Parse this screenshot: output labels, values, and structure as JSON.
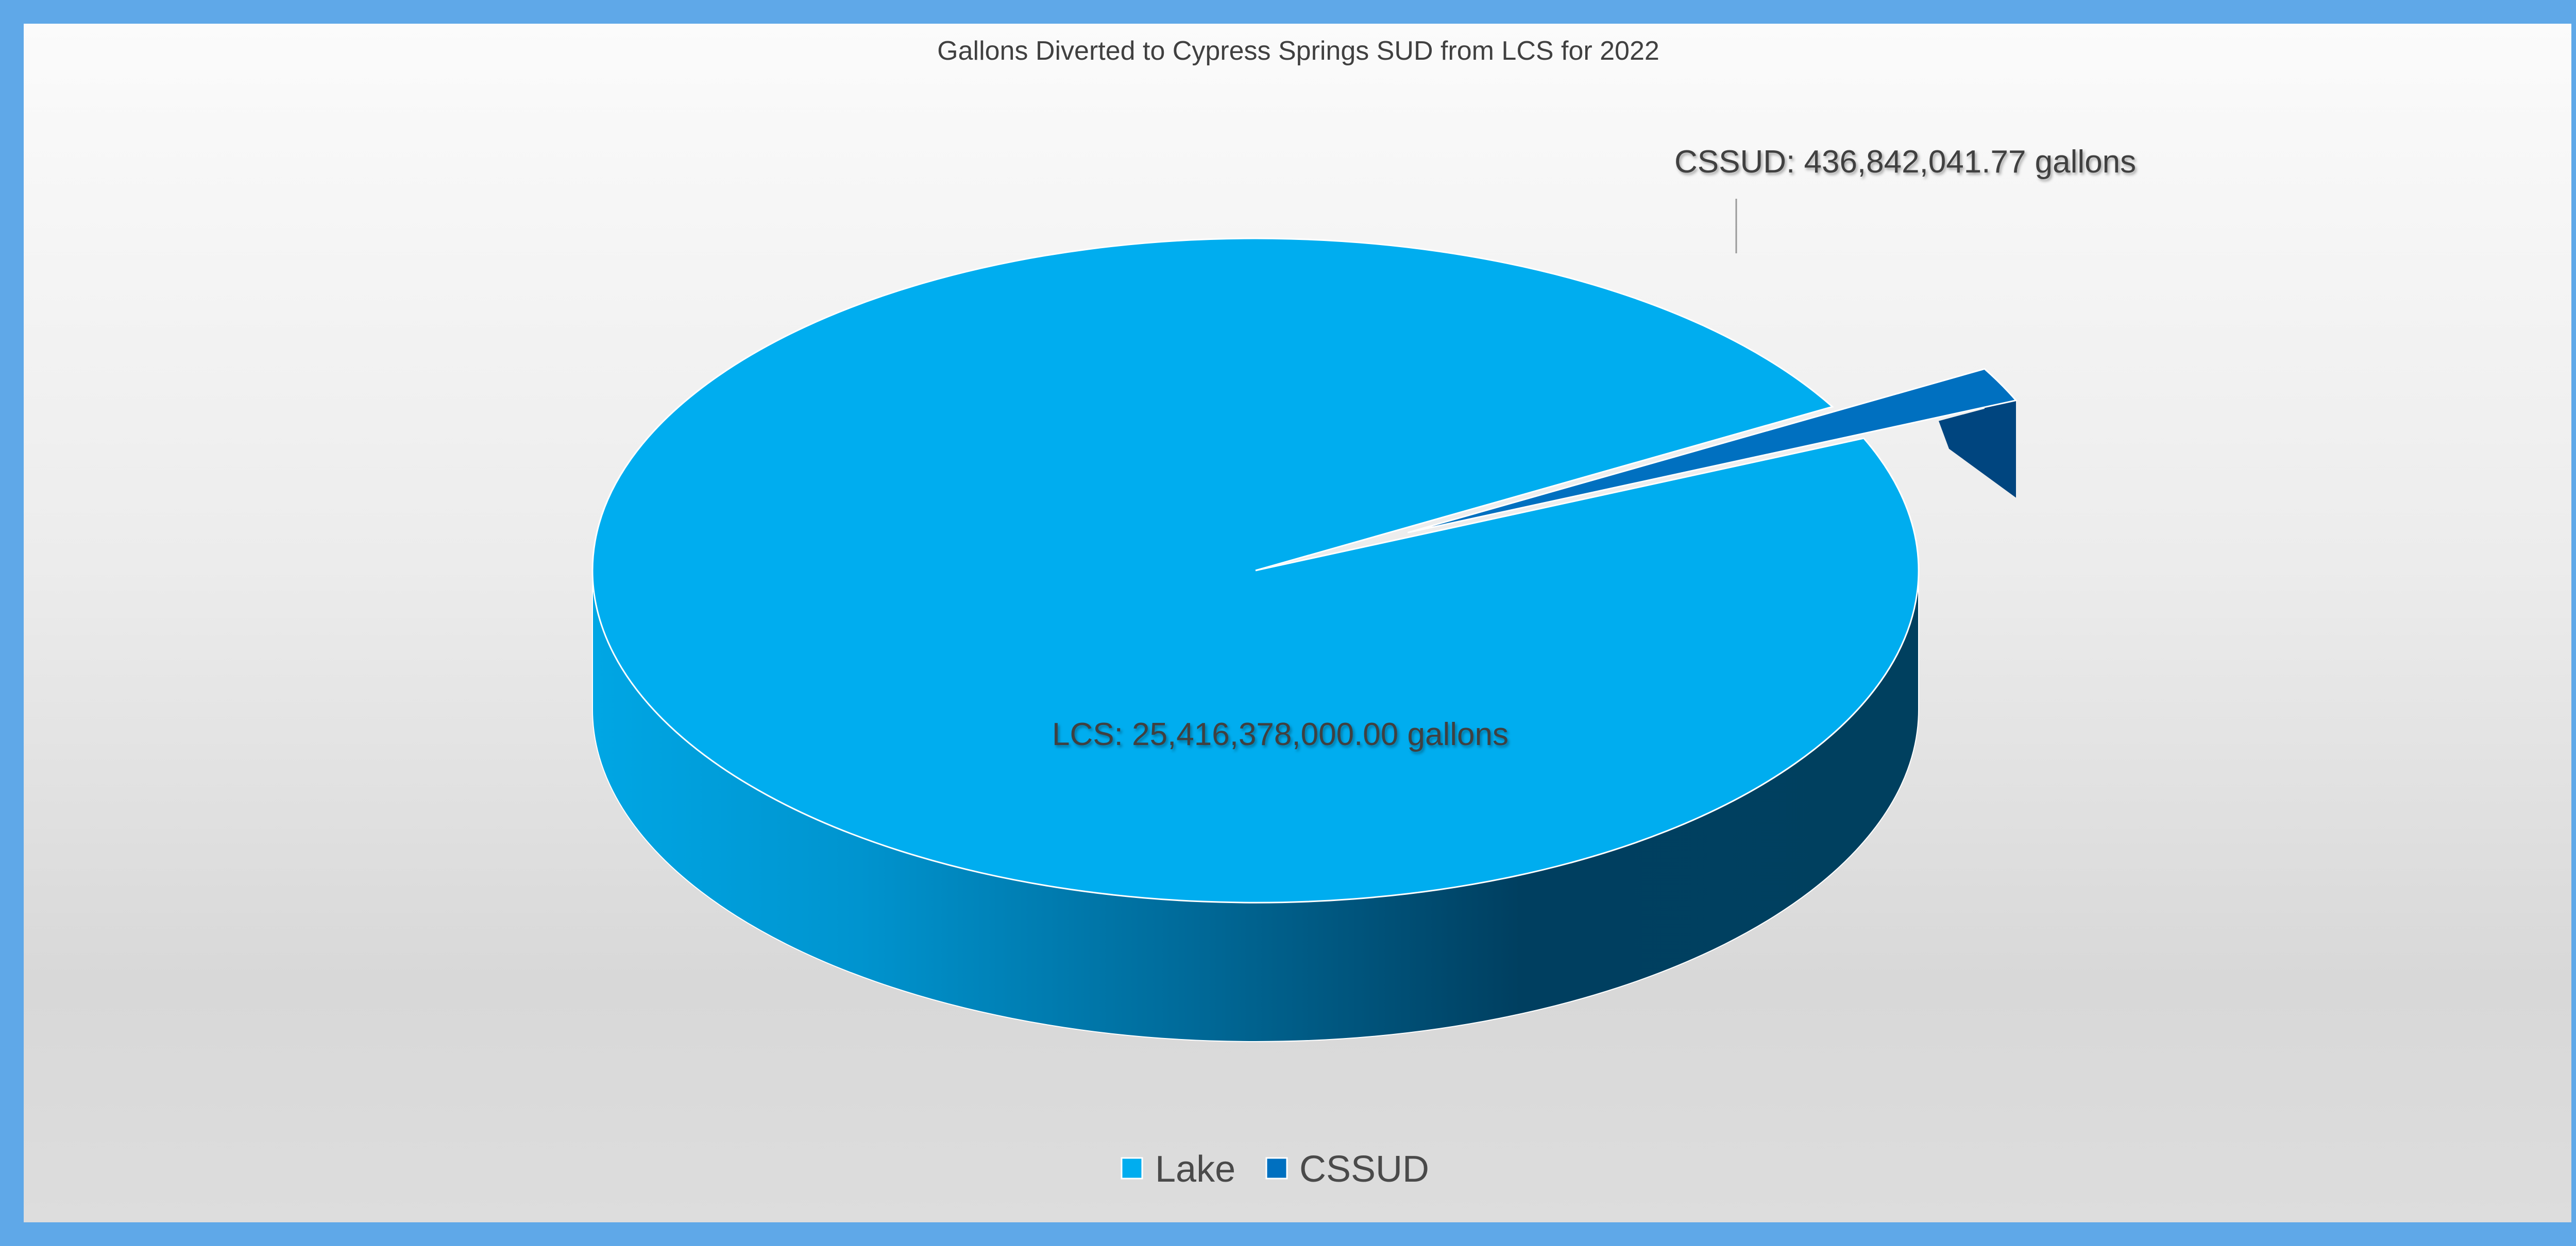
{
  "chart_data": {
    "type": "pie",
    "title": "Gallons Diverted to Cypress Springs SUD from LCS for 2022",
    "categories": [
      "Lake",
      "CSSUD"
    ],
    "values": [
      25416378000.0,
      436842041.77
    ],
    "slices": [
      {
        "name": "Lake",
        "value": 25416378000.0,
        "label": "LCS: 25,416,378,000.00 gallons",
        "color": "#00adef"
      },
      {
        "name": "CSSUD",
        "value": 436842041.77,
        "label": "CSSUD: 436,842,041.77 gallons",
        "color": "#0070c0"
      }
    ],
    "legend": {
      "position": "bottom",
      "entries": [
        "Lake",
        "CSSUD"
      ]
    },
    "style": "3d-pie",
    "exploded": "CSSUD"
  },
  "colors": {
    "frame": "#5fa8e8",
    "lake_top": "#00adef",
    "lake_side_light": "#00a2de",
    "lake_side_dark": "#003d5c",
    "cssud_top": "#0070c0",
    "cssud_side": "#003f7a"
  }
}
